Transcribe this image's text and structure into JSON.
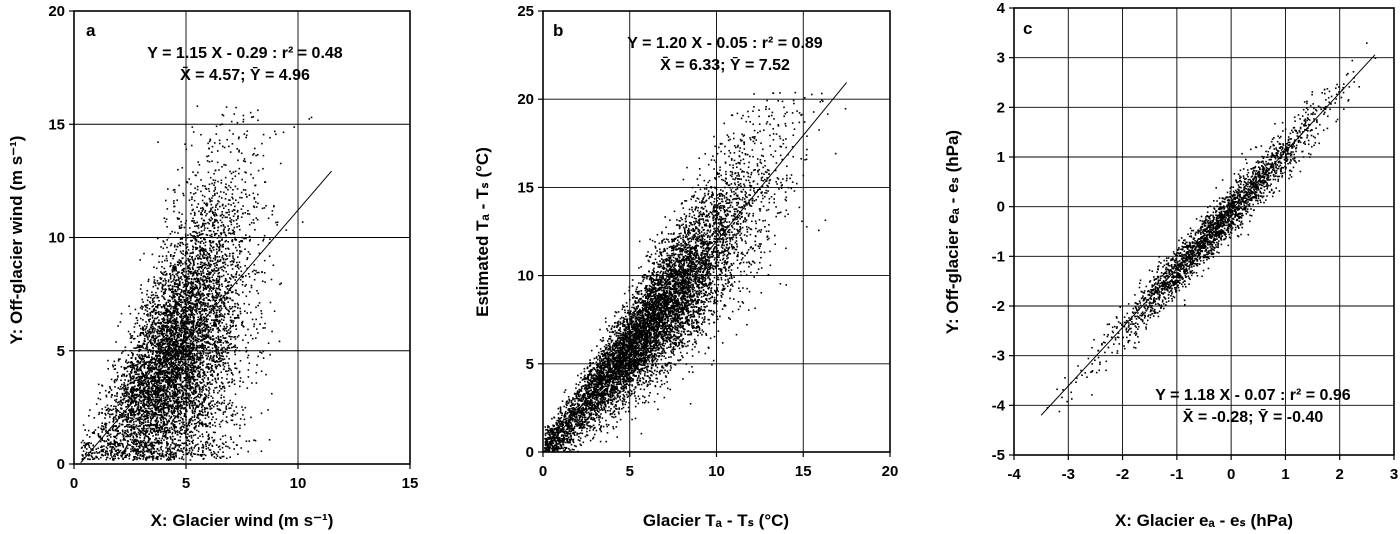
{
  "chart_data": [
    {
      "type": "scatter",
      "panel_label": "a",
      "equation": "Y = 1.15 X - 0.29 : r² = 0.48",
      "means": "X̄ = 4.57; Ȳ = 4.96",
      "xlabel": "X: Glacier wind (m s⁻¹)",
      "ylabel": "Y: Off-glacier wind (m s⁻¹)",
      "xlim": [
        0,
        15
      ],
      "ylim": [
        0,
        20
      ],
      "xticks": [
        0,
        5,
        10,
        15
      ],
      "yticks": [
        0,
        5,
        10,
        15,
        20
      ],
      "grid": true,
      "fit": {
        "slope": 1.15,
        "intercept": -0.29,
        "x_range": [
          0.3,
          11.5
        ]
      },
      "n_points_approx": 7000,
      "stats": {
        "x_mean": 4.57,
        "y_mean": 4.96,
        "r2": 0.48
      }
    },
    {
      "type": "scatter",
      "panel_label": "b",
      "equation": "Y = 1.20 X - 0.05 : r² = 0.89",
      "means": "X̄ = 6.33; Ȳ = 7.52",
      "xlabel": "Glacier Tₐ - Tₛ (°C)",
      "ylabel": "Estimated Tₐ - Tₛ (°C)",
      "xlim": [
        0,
        20
      ],
      "ylim": [
        0,
        25
      ],
      "xticks": [
        0,
        5,
        10,
        15,
        20
      ],
      "yticks": [
        0,
        5,
        10,
        15,
        20,
        25
      ],
      "grid": true,
      "fit": {
        "slope": 1.2,
        "intercept": -0.05,
        "x_range": [
          0,
          17.5
        ]
      },
      "n_points_approx": 8000,
      "stats": {
        "x_mean": 6.33,
        "y_mean": 7.52,
        "r2": 0.89
      }
    },
    {
      "type": "scatter",
      "panel_label": "c",
      "equation": "Y = 1.18 X - 0.07 : r² = 0.96",
      "means": "X̄ = -0.28; Ȳ = -0.40",
      "xlabel": "X: Glacier eₐ - eₛ (hPa)",
      "ylabel": "Y: Off-glacier eₐ - eₛ (hPa)",
      "xlim": [
        -4,
        3
      ],
      "ylim": [
        -5,
        4
      ],
      "xticks": [
        -4,
        -3,
        -2,
        -1,
        0,
        1,
        2,
        3
      ],
      "yticks": [
        -5,
        -4,
        -3,
        -2,
        -1,
        0,
        1,
        2,
        3,
        4
      ],
      "grid": true,
      "fit": {
        "slope": 1.18,
        "intercept": -0.07,
        "x_range": [
          -3.5,
          2.65
        ]
      },
      "n_points_approx": 2500,
      "stats": {
        "x_mean": -0.28,
        "y_mean": -0.4,
        "r2": 0.96
      }
    }
  ]
}
